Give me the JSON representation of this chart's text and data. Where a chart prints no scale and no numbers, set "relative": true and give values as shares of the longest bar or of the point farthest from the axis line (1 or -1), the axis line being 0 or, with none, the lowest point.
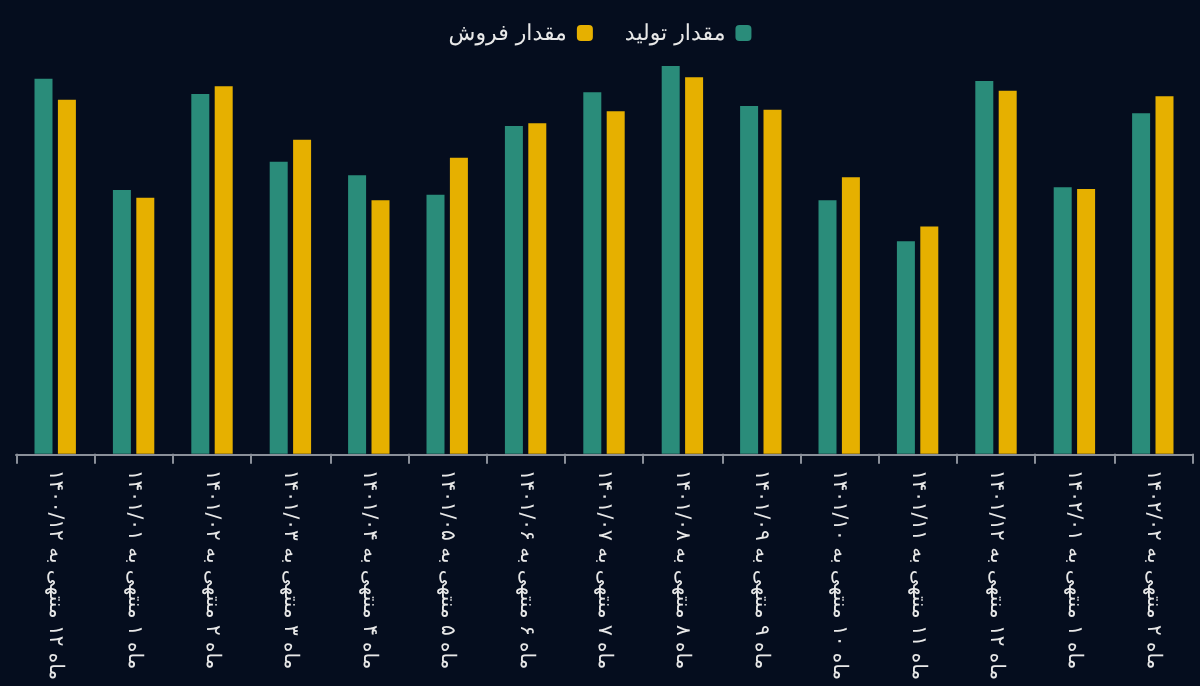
{
  "chart_data": {
    "type": "bar",
    "relative": true,
    "legend": "top",
    "categories": [
      "ماه ۱۲ منتهی به ۱۴۰۰/۱۲",
      "ماه ۱ منتهی به ۱۴۰۱/۰۱",
      "ماه ۲ منتهی به ۱۴۰۱/۰۲",
      "ماه ۳ منتهی به ۱۴۰۱/۰۳",
      "ماه ۴ منتهی به ۱۴۰۱/۰۴",
      "ماه ۵ منتهی به ۱۴۰۱/۰۵",
      "ماه ۶ منتهی به ۱۴۰۱/۰۶",
      "ماه ۷ منتهی به ۱۴۰۱/۰۷",
      "ماه ۸ منتهی به ۱۴۰۱/۰۸",
      "ماه ۹ منتهی به ۱۴۰۱/۰۹",
      "ماه ۱۰ منتهی به ۱۴۰۱/۱۰",
      "ماه ۱۱ منتهی به ۱۴۰۱/۱۱",
      "ماه ۱۲ منتهی به ۱۴۰۱/۱۲",
      "ماه ۱ منتهی به ۱۴۰۲/۰۱",
      "ماه ۲ منتهی به ۱۴۰۲/۰۲"
    ],
    "series": [
      {
        "name": "مقدار تولید",
        "color": "#2a8c7a",
        "values": [
          0.967,
          0.68,
          0.928,
          0.753,
          0.718,
          0.668,
          0.845,
          0.932,
          1,
          0.897,
          0.654,
          0.548,
          0.961,
          0.687,
          0.878
        ]
      },
      {
        "name": "مقدار فروش",
        "color": "#e6b000",
        "values": [
          0.913,
          0.66,
          0.948,
          0.81,
          0.654,
          0.763,
          0.852,
          0.883,
          0.971,
          0.887,
          0.713,
          0.586,
          0.936,
          0.683,
          0.922
        ]
      }
    ]
  }
}
